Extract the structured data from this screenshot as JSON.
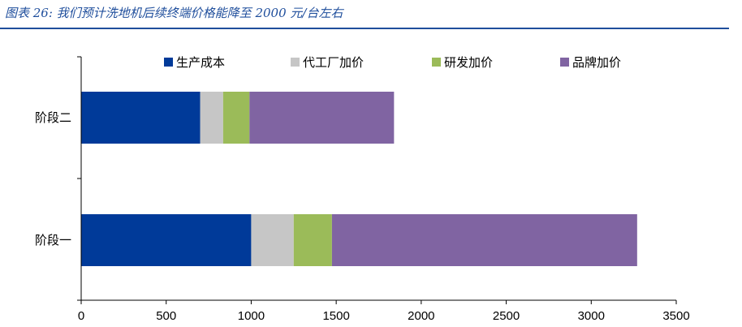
{
  "figure": {
    "title": "图表 26: 我们预计洗地机后续终端价格能降至 2000 元/台左右"
  },
  "chart_data": {
    "type": "bar",
    "orientation": "horizontal",
    "stacked": true,
    "categories": [
      "阶段二",
      "阶段一"
    ],
    "series": [
      {
        "name": "生产成本",
        "color": "#003a99",
        "values": [
          700,
          1000
        ]
      },
      {
        "name": "代工厂加价",
        "color": "#c6c6c6",
        "values": [
          135,
          250
        ]
      },
      {
        "name": "研发加价",
        "color": "#9bbb59",
        "values": [
          155,
          225
        ]
      },
      {
        "name": "品牌加价",
        "color": "#8064a2",
        "values": [
          850,
          1795
        ]
      }
    ],
    "xlim": [
      0,
      3500
    ],
    "xticks": [
      0,
      500,
      1000,
      1500,
      2000,
      2500,
      3000,
      3500
    ],
    "grid": false,
    "legend_position": "top"
  }
}
